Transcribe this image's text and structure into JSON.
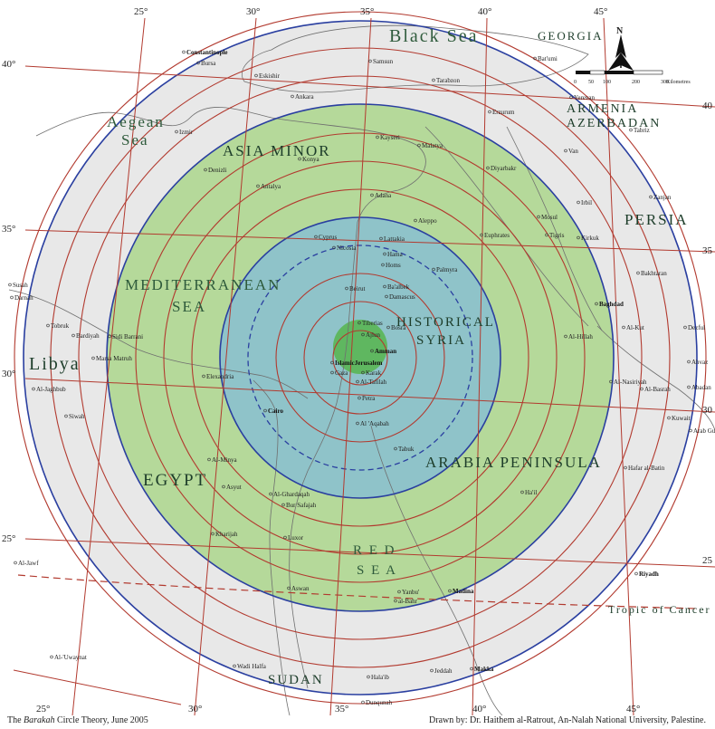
{
  "regions": [
    {
      "id": "black-sea",
      "text": "Black Sea",
      "size": 20
    },
    {
      "id": "georgia",
      "text": "GEORGIA",
      "size": 13
    },
    {
      "id": "armenia",
      "text": "ARMENIA",
      "size": 14
    },
    {
      "id": "azerbadan",
      "text": "AZERBADAN",
      "size": 14
    },
    {
      "id": "aegean",
      "text": "Aegean",
      "size": 17
    },
    {
      "id": "aegean-sea",
      "text": "Sea",
      "size": 17
    },
    {
      "id": "asia-minor",
      "text": "ASIA MINOR",
      "size": 17
    },
    {
      "id": "persia",
      "text": "PERSIA",
      "size": 17
    },
    {
      "id": "mediterranean",
      "text": "MEDITERRANEAN",
      "size": 17
    },
    {
      "id": "med-sea",
      "text": "SEA",
      "size": 17
    },
    {
      "id": "historical",
      "text": "HISTORICAL",
      "size": 15
    },
    {
      "id": "syria",
      "text": "SYRIA",
      "size": 15
    },
    {
      "id": "libya",
      "text": "Libya",
      "size": 20
    },
    {
      "id": "arabia",
      "text": "ARABIA PENINSULA",
      "size": 17
    },
    {
      "id": "egypt",
      "text": "EGYPT",
      "size": 19
    },
    {
      "id": "red",
      "text": "R E D",
      "size": 15
    },
    {
      "id": "red-sea",
      "text": "S E A",
      "size": 15
    },
    {
      "id": "tropic",
      "text": "Tropic of Cancer",
      "size": 12
    },
    {
      "id": "sudan",
      "text": "SUDAN",
      "size": 15
    }
  ],
  "cities": [
    {
      "id": "constantinople",
      "text": "Constantinople",
      "bold": true
    },
    {
      "id": "bursa",
      "text": "Bursa"
    },
    {
      "id": "eskisehir",
      "text": "Eskishir"
    },
    {
      "id": "ankara",
      "text": "Ankara",
      "size": 10
    },
    {
      "id": "samsun",
      "text": "Samsun"
    },
    {
      "id": "trabzon",
      "text": "Tarabzon"
    },
    {
      "id": "batumi",
      "text": "Bat'umi"
    },
    {
      "id": "erzurum",
      "text": "Erzurum"
    },
    {
      "id": "yerevan",
      "text": "Yerevan"
    },
    {
      "id": "tabriz",
      "text": "Tabriz"
    },
    {
      "id": "izmir",
      "text": "Izmir"
    },
    {
      "id": "kayseri",
      "text": "Kayseri"
    },
    {
      "id": "malatya",
      "text": "Malatya"
    },
    {
      "id": "van",
      "text": "Van"
    },
    {
      "id": "konya",
      "text": "Konya"
    },
    {
      "id": "diyarbakr",
      "text": "Diyarbakr",
      "size": 9
    },
    {
      "id": "denizli",
      "text": "Denizli"
    },
    {
      "id": "antalya",
      "text": "Antalya"
    },
    {
      "id": "adana",
      "text": "Adana"
    },
    {
      "id": "aleppo",
      "text": "Aleppo"
    },
    {
      "id": "euphrates",
      "text": "Euphrates"
    },
    {
      "id": "tigris",
      "text": "Tigris"
    },
    {
      "id": "mosul",
      "text": "Mosul"
    },
    {
      "id": "irbil",
      "text": "Irbil"
    },
    {
      "id": "zanjan",
      "text": "Zanjan"
    },
    {
      "id": "cyprus",
      "text": "Cyprus"
    },
    {
      "id": "nicosia",
      "text": "Nicosia"
    },
    {
      "id": "lattakia",
      "text": "Lattakia"
    },
    {
      "id": "hama",
      "text": "Hama"
    },
    {
      "id": "homs",
      "text": "Homs"
    },
    {
      "id": "palmyra",
      "text": "Palmyra"
    },
    {
      "id": "kirkuk",
      "text": "Kirkuk"
    },
    {
      "id": "bakhtaran",
      "text": "Bakhtaran"
    },
    {
      "id": "susah",
      "text": "Susah"
    },
    {
      "id": "darnah",
      "text": "Darnah"
    },
    {
      "id": "beirut",
      "text": "Beirut"
    },
    {
      "id": "baalbek",
      "text": "Ba'albek"
    },
    {
      "id": "damascus",
      "text": "Damascus"
    },
    {
      "id": "baghdad",
      "text": "Baghdad",
      "bold": true
    },
    {
      "id": "tobruk",
      "text": "Tobruk"
    },
    {
      "id": "bardiyah",
      "text": "Bardiyah"
    },
    {
      "id": "sidi-barrani",
      "text": "Sidi Barrani"
    },
    {
      "id": "marsa-matruh",
      "text": "Marsa Matruh"
    },
    {
      "id": "tiberias",
      "text": "Tiberias"
    },
    {
      "id": "bosra",
      "text": "Bosra"
    },
    {
      "id": "ajlun",
      "text": "Ajlun"
    },
    {
      "id": "amman",
      "text": "Amman",
      "bold": true
    },
    {
      "id": "islamic-jerusalem",
      "text": "IslamicJerusalem",
      "bold": true
    },
    {
      "id": "al-kut",
      "text": "Al-Kut"
    },
    {
      "id": "al-hillah",
      "text": "Al-Hillah"
    },
    {
      "id": "dezful",
      "text": "Dezful"
    },
    {
      "id": "karak",
      "text": "Karak"
    },
    {
      "id": "al-tafilah",
      "text": "Al-Tafilah"
    },
    {
      "id": "elexandria",
      "text": "Elexandria"
    },
    {
      "id": "gaza",
      "text": "Gaza"
    },
    {
      "id": "petra",
      "text": "Petra"
    },
    {
      "id": "al-jaghbub",
      "text": "Al-Jaghbub"
    },
    {
      "id": "al-nasiriyah",
      "text": "Al-Nasiriyah"
    },
    {
      "id": "ahvaz",
      "text": "Ahvaz"
    },
    {
      "id": "al-basrah",
      "text": "Al-Basrah"
    },
    {
      "id": "abadan",
      "text": "Abadan"
    },
    {
      "id": "cairo",
      "text": "Cairo",
      "bold": true
    },
    {
      "id": "siwah",
      "text": "Siwah"
    },
    {
      "id": "al-aqabah",
      "text": "Al 'Aqabah",
      "size": 10
    },
    {
      "id": "kuwait",
      "text": "Kuwait"
    },
    {
      "id": "arab-gulf",
      "text": "Arab Gulf"
    },
    {
      "id": "tabuk",
      "text": "Tabuk"
    },
    {
      "id": "al-minya",
      "text": "Al-Minya"
    },
    {
      "id": "hafar",
      "text": "Hafar al-Batin"
    },
    {
      "id": "asyut",
      "text": "Asyut"
    },
    {
      "id": "al-ghardaqah",
      "text": "Al-Ghardaqah"
    },
    {
      "id": "bur-safajah",
      "text": "Bur Safajah"
    },
    {
      "id": "hail",
      "text": "Ha'il"
    },
    {
      "id": "kharijah",
      "text": "Kharijah"
    },
    {
      "id": "luxor",
      "text": "Luxor"
    },
    {
      "id": "al-jawf",
      "text": "Al-Jawf"
    },
    {
      "id": "riyadh",
      "text": "Riyadh",
      "bold": true
    },
    {
      "id": "aswan",
      "text": "Aswan"
    },
    {
      "id": "yanbu",
      "text": "Yanbu'"
    },
    {
      "id": "al-bahr",
      "text": "al-Bahr"
    },
    {
      "id": "madina",
      "text": "Madina",
      "bold": true
    },
    {
      "id": "al-uwaynat",
      "text": "Al-'Uwaynat"
    },
    {
      "id": "wadi-halfa",
      "text": "Wadi Halfa"
    },
    {
      "id": "halaib",
      "text": "Hala'ib"
    },
    {
      "id": "makka",
      "text": "Makka",
      "bold": true
    },
    {
      "id": "jeddah",
      "text": "Jeddah"
    },
    {
      "id": "dunqunah",
      "text": "Dunqunah"
    }
  ],
  "ticks": [
    {
      "id": "lon-25-top",
      "text": "25°"
    },
    {
      "id": "lon-30-top",
      "text": "30°"
    },
    {
      "id": "lon-35-top",
      "text": "35°"
    },
    {
      "id": "lon-40-top",
      "text": "40°"
    },
    {
      "id": "lon-45-top",
      "text": "45°"
    },
    {
      "id": "lon-25-bot",
      "text": "25°"
    },
    {
      "id": "lon-30-bot",
      "text": "30°"
    },
    {
      "id": "lon-35-bot",
      "text": "35°"
    },
    {
      "id": "lon-40-bot",
      "text": "40°"
    },
    {
      "id": "lon-45-bot",
      "text": "45°"
    },
    {
      "id": "lat-40-left",
      "text": "40°"
    },
    {
      "id": "lat-35-left",
      "text": "35°"
    },
    {
      "id": "lat-30-left",
      "text": "30°"
    },
    {
      "id": "lat-25-left",
      "text": "25°"
    },
    {
      "id": "lat-40-right",
      "text": "40"
    },
    {
      "id": "lat-35-right",
      "text": "35"
    },
    {
      "id": "lat-30-right",
      "text": "30"
    },
    {
      "id": "lat-25-right",
      "text": "25"
    }
  ],
  "scale_bar": {
    "labels": [
      "0",
      "50",
      "100",
      "200",
      "300"
    ],
    "unit": "Kilometres",
    "north_letter": "N"
  },
  "footer": {
    "left_pre": "The ",
    "left_italic": "Barakah",
    "left_post": " Circle Theory, June 2005",
    "right": "Drawn by: Dr. Haithem al-Ratrout, An-Nalah National University, Palestine."
  },
  "colors": {
    "outer_fill": "#e8e8e8",
    "middle_fill": "#b5d99a",
    "inner_fill": "#8fc3c9",
    "core_fill": "#5fb760",
    "ring": "#b23a2f",
    "blue_ring": "#2a3fa0",
    "grid": "#b23a2f"
  }
}
